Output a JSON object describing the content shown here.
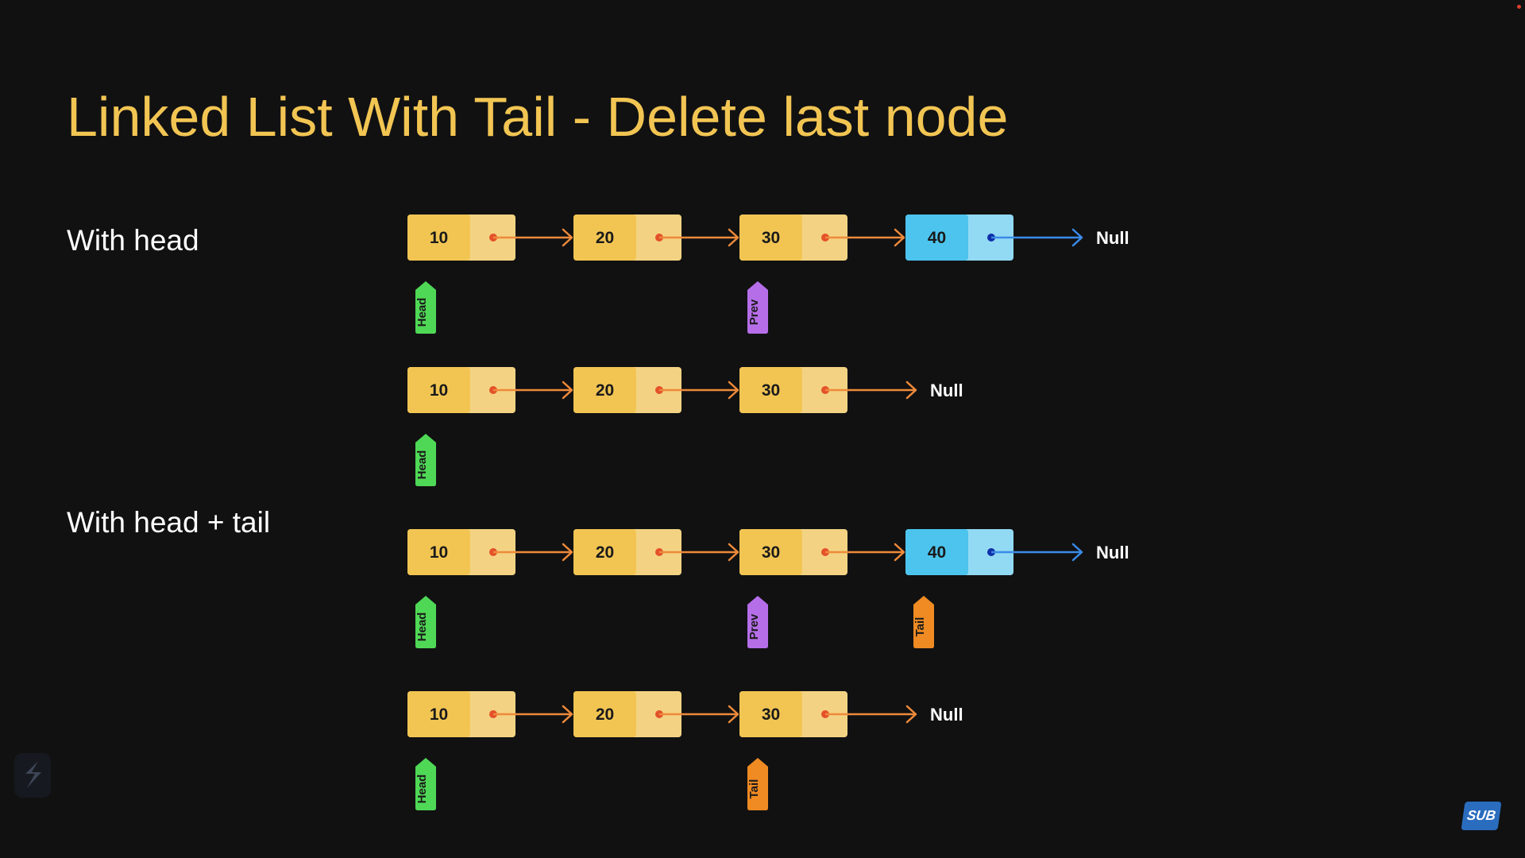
{
  "title": "Linked List With Tail - Delete last node",
  "sections": [
    {
      "label": "With head"
    },
    {
      "label": "With head + tail"
    }
  ],
  "null_label": "Null",
  "colors": {
    "title": "#f2c553",
    "node_value": "#f2c553",
    "node_pointer": "#f3d383",
    "node_value_deleted": "#4cc4ee",
    "node_pointer_deleted": "#92d9f3",
    "arrow": "#ee8a3a",
    "arrow_deleted": "#3a8be8",
    "dot": "#e4512b",
    "dot_deleted": "#0f2fa8",
    "head_tag": "#4fd856",
    "prev_tag": "#b56ee8",
    "tail_tag": "#f08a22"
  },
  "rows": [
    {
      "nodes": [
        {
          "value": "10",
          "state": "normal"
        },
        {
          "value": "20",
          "state": "normal"
        },
        {
          "value": "30",
          "state": "normal"
        },
        {
          "value": "40",
          "state": "deleted"
        }
      ],
      "pointers": [
        {
          "label": "Head",
          "node_index": 0,
          "kind": "head"
        },
        {
          "label": "Prev",
          "node_index": 2,
          "kind": "prev"
        }
      ]
    },
    {
      "nodes": [
        {
          "value": "10",
          "state": "normal"
        },
        {
          "value": "20",
          "state": "normal"
        },
        {
          "value": "30",
          "state": "normal"
        }
      ],
      "pointers": [
        {
          "label": "Head",
          "node_index": 0,
          "kind": "head"
        }
      ]
    },
    {
      "nodes": [
        {
          "value": "10",
          "state": "normal"
        },
        {
          "value": "20",
          "state": "normal"
        },
        {
          "value": "30",
          "state": "normal"
        },
        {
          "value": "40",
          "state": "deleted"
        }
      ],
      "pointers": [
        {
          "label": "Head",
          "node_index": 0,
          "kind": "head"
        },
        {
          "label": "Prev",
          "node_index": 2,
          "kind": "prev"
        },
        {
          "label": "Tail",
          "node_index": 3,
          "kind": "tail"
        }
      ]
    },
    {
      "nodes": [
        {
          "value": "10",
          "state": "normal"
        },
        {
          "value": "20",
          "state": "normal"
        },
        {
          "value": "30",
          "state": "normal"
        }
      ],
      "pointers": [
        {
          "label": "Head",
          "node_index": 0,
          "kind": "head"
        },
        {
          "label": "Tail",
          "node_index": 2,
          "kind": "tail"
        }
      ]
    }
  ],
  "badge": "SUB"
}
